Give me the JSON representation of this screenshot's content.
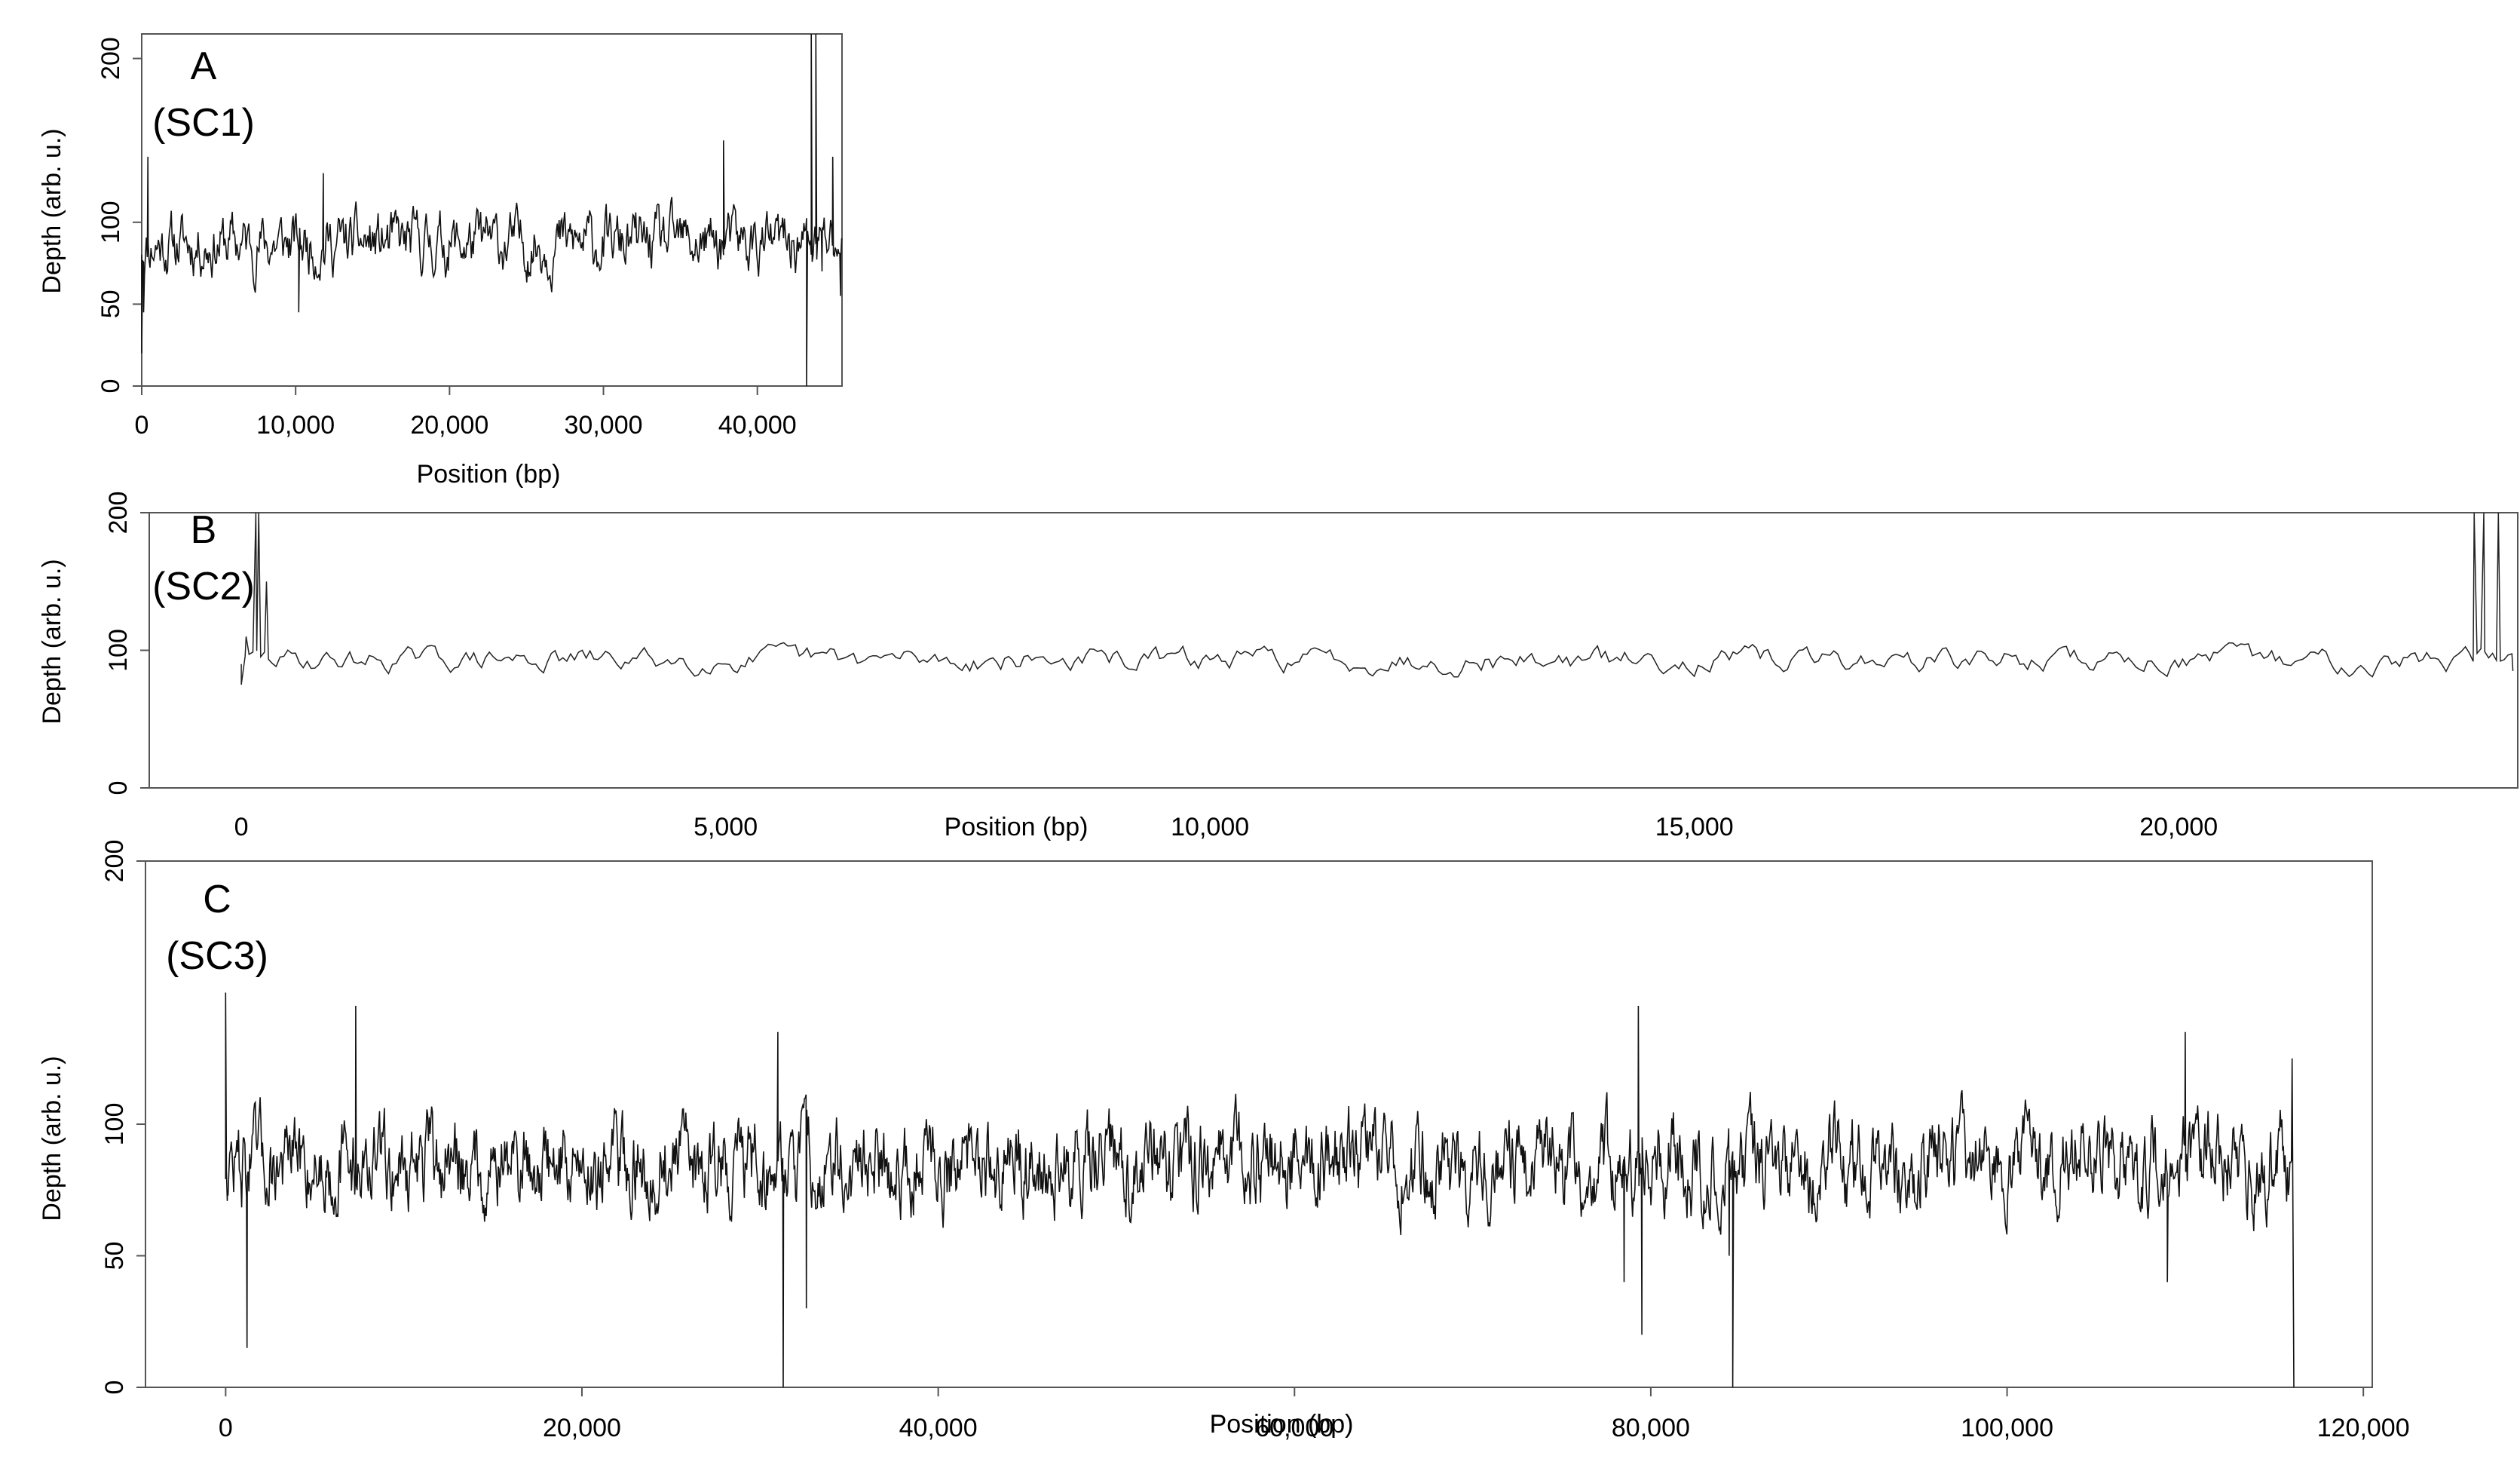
{
  "chart_data": [
    {
      "type": "line",
      "panel": "A",
      "label": "(SC1)",
      "xlabel": "Position (bp)",
      "ylabel": "Depth (arb. u.)",
      "xlim": [
        0,
        45500
      ],
      "ylim": [
        0,
        215
      ],
      "x_ticks": [
        0,
        10000,
        20000,
        30000,
        40000
      ],
      "x_tick_labels": [
        "0",
        "10,000",
        "20,000",
        "30,000",
        "40,000"
      ],
      "y_ticks": [
        0,
        50,
        100,
        200
      ],
      "y_tick_labels": [
        "0",
        "50",
        "100",
        "200"
      ],
      "series": [
        {
          "x_start": 0,
          "x_end": 45500,
          "baseline": 87,
          "noise": 13,
          "events": [
            [
              0,
              20
            ],
            [
              120,
              45
            ],
            [
              400,
              140
            ],
            [
              11800,
              130
            ],
            [
              10200,
              45
            ],
            [
              37800,
              150
            ],
            [
              43200,
              0
            ],
            [
              43500,
              215
            ],
            [
              43800,
              215
            ],
            [
              44200,
              70
            ],
            [
              44900,
              140
            ],
            [
              45400,
              55
            ]
          ]
        }
      ]
    },
    {
      "type": "line",
      "panel": "B",
      "label": "(SC2)",
      "xlabel": "Position (bp)",
      "ylabel": "Depth (arb. u.)",
      "xlim": [
        -950,
        23500
      ],
      "ylim": [
        0,
        200
      ],
      "x_ticks": [
        0,
        5000,
        10000,
        15000,
        20000
      ],
      "x_tick_labels": [
        "0",
        "5,000",
        "10,000",
        "15,000",
        "20,000"
      ],
      "y_ticks": [
        0,
        100,
        200
      ],
      "y_tick_labels": [
        "0",
        "100",
        "200"
      ],
      "series": [
        {
          "x_start": 0,
          "x_end": 23450,
          "baseline": 93,
          "noise": 6,
          "events": [
            [
              0,
              75
            ],
            [
              50,
              110
            ],
            [
              150,
              200
            ],
            [
              180,
              200
            ],
            [
              260,
              150
            ],
            [
              23050,
              200
            ],
            [
              23150,
              200
            ],
            [
              23300,
              200
            ],
            [
              23450,
              85
            ]
          ]
        }
      ]
    },
    {
      "type": "line",
      "panel": "C",
      "label": "(SC3)",
      "xlabel": "Position (bp)",
      "ylabel": "Depth (arb. u.)",
      "xlim": [
        -4500,
        120500
      ],
      "ylim": [
        0,
        200
      ],
      "x_ticks": [
        0,
        20000,
        40000,
        60000,
        80000,
        100000,
        120000
      ],
      "x_tick_labels": [
        "0",
        "20,000",
        "40,000",
        "60,000",
        "80,000",
        "100,000",
        "120,000"
      ],
      "y_ticks": [
        0,
        50,
        100,
        200
      ],
      "y_tick_labels": [
        "0",
        "50",
        "100",
        "200"
      ],
      "series": [
        {
          "x_start": 0,
          "x_end": 116000,
          "baseline": 85,
          "noise": 12,
          "events": [
            [
              0,
              150
            ],
            [
              100,
              75
            ],
            [
              1200,
              15
            ],
            [
              7300,
              145
            ],
            [
              31300,
              0
            ],
            [
              31000,
              135
            ],
            [
              32600,
              30
            ],
            [
              79300,
              145
            ],
            [
              79500,
              20
            ],
            [
              78500,
              40
            ],
            [
              84600,
              0
            ],
            [
              84400,
              50
            ],
            [
              110000,
              135
            ],
            [
              109000,
              40
            ],
            [
              116000,
              125
            ],
            [
              116100,
              0
            ]
          ]
        }
      ]
    }
  ]
}
